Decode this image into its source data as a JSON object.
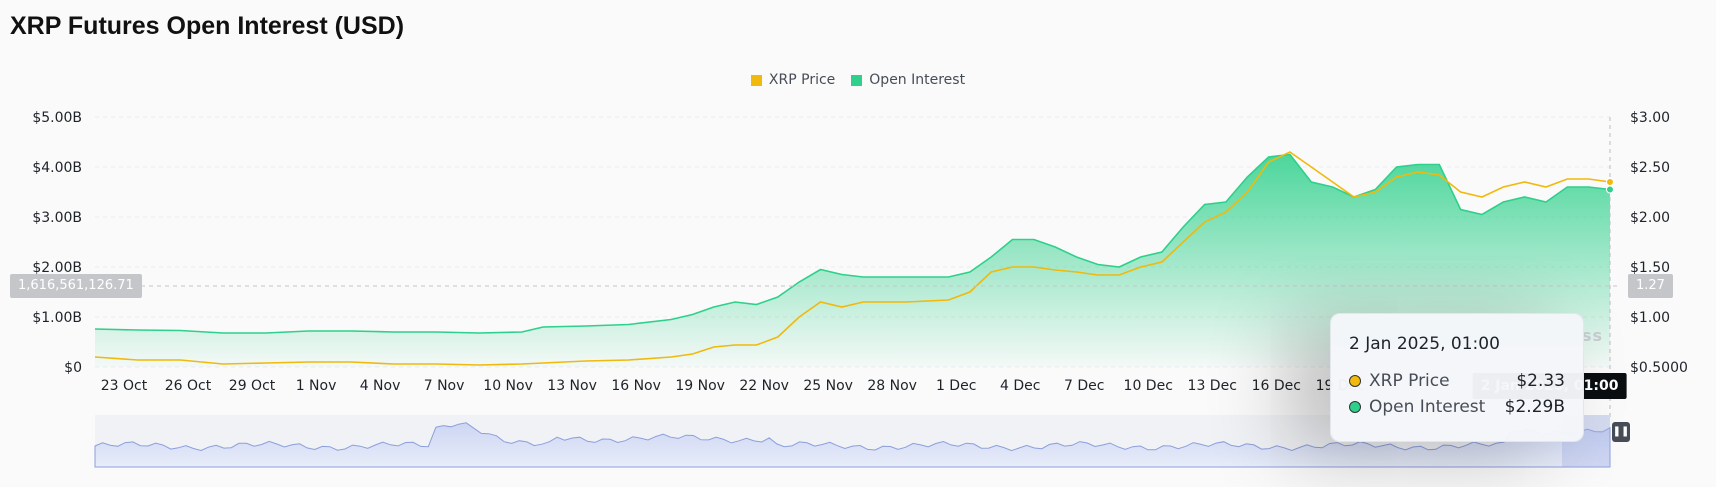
{
  "title": "XRP Futures Open Interest (USD)",
  "watermark": "ss",
  "legend": [
    {
      "label": "XRP Price",
      "color": "#f0b90b"
    },
    {
      "label": "Open Interest",
      "color": "#2ed08b"
    }
  ],
  "tooltip": {
    "date": "2 Jan 2025, 01:00",
    "rows": [
      {
        "label": "XRP Price",
        "value": "$2.33",
        "color": "#f0b90b"
      },
      {
        "label": "Open Interest",
        "value": "$2.29B",
        "color": "#2ed08b"
      }
    ]
  },
  "crosshair": {
    "x_label": "2 Jan 2025, 01:00",
    "y_left_label": "1,616,561,126.71",
    "y_right_label": "1.27"
  },
  "navigator": {
    "handle_icon": "pause-icon"
  },
  "chart_data": {
    "type": "area",
    "x_tick_labels": [
      "23 Oct",
      "26 Oct",
      "29 Oct",
      "1 Nov",
      "4 Nov",
      "7 Nov",
      "10 Nov",
      "13 Nov",
      "16 Nov",
      "19 Nov",
      "22 Nov",
      "25 Nov",
      "28 Nov",
      "1 Dec",
      "4 Dec",
      "7 Dec",
      "10 Dec",
      "13 Dec",
      "16 Dec",
      "19 Dec"
    ],
    "y_left_ticks": [
      "$5.00B",
      "$4.00B",
      "$3.00B",
      "$2.00B",
      "$1.00B",
      "$0"
    ],
    "y_right_ticks": [
      "$3.00",
      "$2.50",
      "$2.00",
      "$1.50",
      "$1.00",
      "$0.5000"
    ],
    "y_left_range": [
      0,
      5.0
    ],
    "y_right_range": [
      0.5,
      3.0
    ],
    "x_range": [
      0,
      71
    ],
    "series": [
      {
        "name": "Open Interest",
        "unit": "B USD",
        "axis": "left",
        "color": "#2ed08b",
        "points": [
          [
            0,
            0.76
          ],
          [
            2,
            0.74
          ],
          [
            4,
            0.73
          ],
          [
            6,
            0.68
          ],
          [
            8,
            0.68
          ],
          [
            10,
            0.72
          ],
          [
            12,
            0.72
          ],
          [
            14,
            0.7
          ],
          [
            16,
            0.7
          ],
          [
            18,
            0.68
          ],
          [
            20,
            0.7
          ],
          [
            21,
            0.8
          ],
          [
            23,
            0.82
          ],
          [
            25,
            0.85
          ],
          [
            27,
            0.95
          ],
          [
            28,
            1.05
          ],
          [
            29,
            1.2
          ],
          [
            30,
            1.3
          ],
          [
            31,
            1.25
          ],
          [
            32,
            1.4
          ],
          [
            33,
            1.7
          ],
          [
            34,
            1.95
          ],
          [
            35,
            1.85
          ],
          [
            36,
            1.8
          ],
          [
            38,
            1.8
          ],
          [
            40,
            1.8
          ],
          [
            41,
            1.9
          ],
          [
            42,
            2.2
          ],
          [
            43,
            2.55
          ],
          [
            44,
            2.55
          ],
          [
            45,
            2.4
          ],
          [
            46,
            2.2
          ],
          [
            47,
            2.05
          ],
          [
            48,
            2.0
          ],
          [
            49,
            2.2
          ],
          [
            50,
            2.3
          ],
          [
            51,
            2.8
          ],
          [
            52,
            3.25
          ],
          [
            53,
            3.3
          ],
          [
            54,
            3.8
          ],
          [
            55,
            4.2
          ],
          [
            56,
            4.25
          ],
          [
            57,
            3.7
          ],
          [
            58,
            3.6
          ],
          [
            59,
            3.4
          ],
          [
            60,
            3.55
          ],
          [
            61,
            4.0
          ],
          [
            62,
            4.05
          ],
          [
            63,
            4.05
          ],
          [
            64,
            3.15
          ],
          [
            65,
            3.05
          ],
          [
            66,
            3.3
          ],
          [
            67,
            3.4
          ],
          [
            68,
            3.3
          ],
          [
            69,
            3.6
          ],
          [
            70,
            3.6
          ],
          [
            71,
            3.55
          ]
        ]
      },
      {
        "name": "XRP Price",
        "unit": "USD",
        "axis": "right",
        "color": "#f0b90b",
        "points": [
          [
            0,
            0.6
          ],
          [
            2,
            0.57
          ],
          [
            4,
            0.57
          ],
          [
            6,
            0.53
          ],
          [
            8,
            0.54
          ],
          [
            10,
            0.55
          ],
          [
            12,
            0.55
          ],
          [
            14,
            0.53
          ],
          [
            16,
            0.53
          ],
          [
            18,
            0.52
          ],
          [
            20,
            0.53
          ],
          [
            21,
            0.54
          ],
          [
            23,
            0.56
          ],
          [
            25,
            0.57
          ],
          [
            27,
            0.6
          ],
          [
            28,
            0.63
          ],
          [
            29,
            0.7
          ],
          [
            30,
            0.72
          ],
          [
            31,
            0.72
          ],
          [
            32,
            0.8
          ],
          [
            33,
            1.0
          ],
          [
            34,
            1.15
          ],
          [
            35,
            1.1
          ],
          [
            36,
            1.15
          ],
          [
            38,
            1.15
          ],
          [
            40,
            1.17
          ],
          [
            41,
            1.25
          ],
          [
            42,
            1.45
          ],
          [
            43,
            1.5
          ],
          [
            44,
            1.5
          ],
          [
            45,
            1.47
          ],
          [
            46,
            1.45
          ],
          [
            47,
            1.42
          ],
          [
            48,
            1.42
          ],
          [
            49,
            1.5
          ],
          [
            50,
            1.55
          ],
          [
            51,
            1.75
          ],
          [
            52,
            1.95
          ],
          [
            53,
            2.05
          ],
          [
            54,
            2.25
          ],
          [
            55,
            2.55
          ],
          [
            56,
            2.65
          ],
          [
            57,
            2.5
          ],
          [
            58,
            2.35
          ],
          [
            59,
            2.2
          ],
          [
            60,
            2.25
          ],
          [
            61,
            2.4
          ],
          [
            62,
            2.45
          ],
          [
            63,
            2.42
          ],
          [
            64,
            2.25
          ],
          [
            65,
            2.2
          ],
          [
            66,
            2.3
          ],
          [
            67,
            2.35
          ],
          [
            68,
            2.3
          ],
          [
            69,
            2.38
          ],
          [
            70,
            2.38
          ],
          [
            71,
            2.35
          ]
        ]
      }
    ]
  }
}
